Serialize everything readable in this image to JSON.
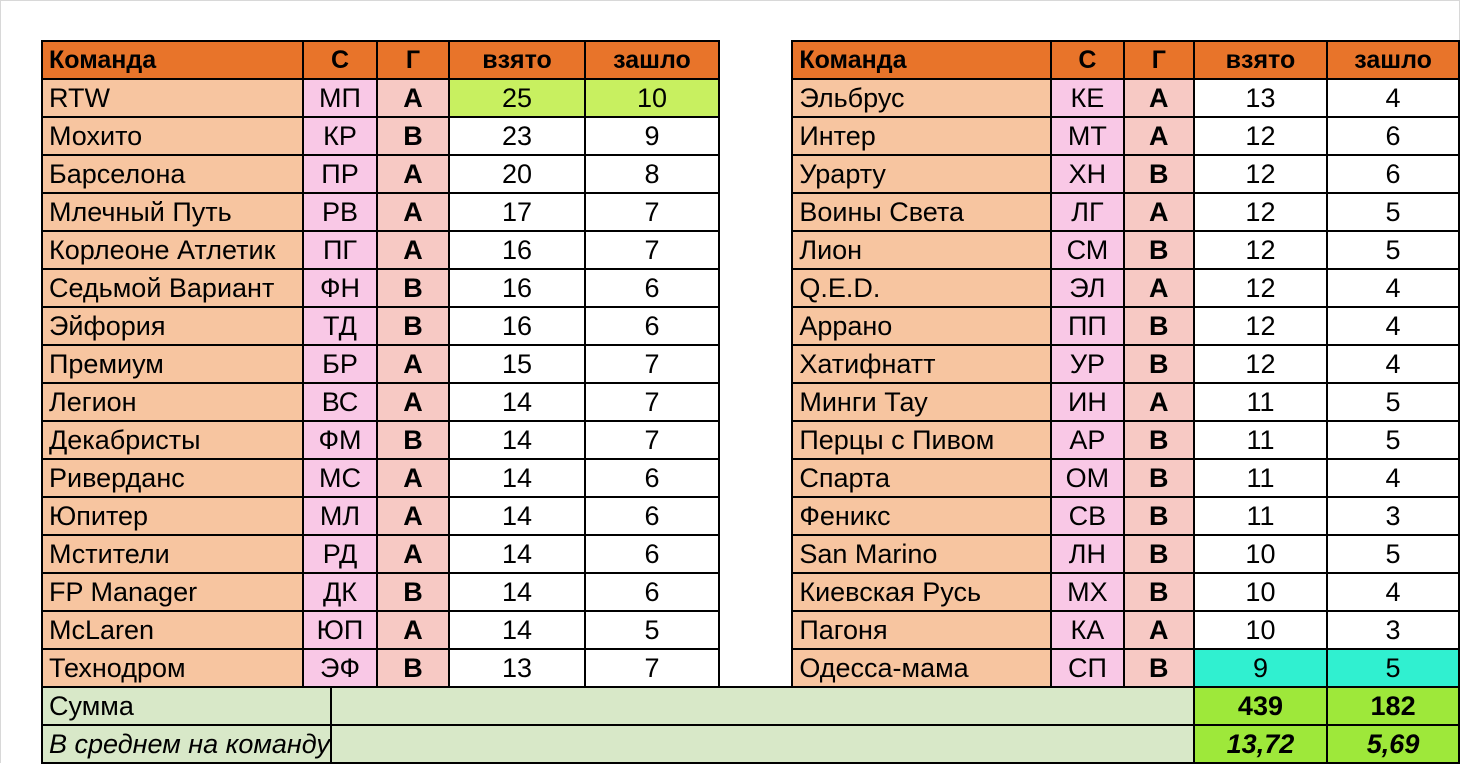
{
  "headers": {
    "team": "Команда",
    "c": "С",
    "g": "Г",
    "taken": "взято",
    "conceded": "зашло"
  },
  "left_rows": [
    {
      "team": "RTW",
      "c": "МП",
      "g": "A",
      "taken": "25",
      "conceded": "10"
    },
    {
      "team": "Мохито",
      "c": "КР",
      "g": "B",
      "taken": "23",
      "conceded": "9"
    },
    {
      "team": "Барселона",
      "c": "ПР",
      "g": "A",
      "taken": "20",
      "conceded": "8"
    },
    {
      "team": "Млечный Путь",
      "c": "РВ",
      "g": "A",
      "taken": "17",
      "conceded": "7"
    },
    {
      "team": "Корлеоне Атлетик",
      "c": "ПГ",
      "g": "A",
      "taken": "16",
      "conceded": "7"
    },
    {
      "team": "Седьмой Вариант",
      "c": "ФН",
      "g": "B",
      "taken": "16",
      "conceded": "6"
    },
    {
      "team": "Эйфория",
      "c": "ТД",
      "g": "B",
      "taken": "16",
      "conceded": "6"
    },
    {
      "team": "Премиум",
      "c": "БР",
      "g": "A",
      "taken": "15",
      "conceded": "7"
    },
    {
      "team": "Легион",
      "c": "ВС",
      "g": "A",
      "taken": "14",
      "conceded": "7"
    },
    {
      "team": "Декабристы",
      "c": "ФМ",
      "g": "B",
      "taken": "14",
      "conceded": "7"
    },
    {
      "team": "Риверданс",
      "c": "МС",
      "g": "A",
      "taken": "14",
      "conceded": "6"
    },
    {
      "team": "Юпитер",
      "c": "МЛ",
      "g": "A",
      "taken": "14",
      "conceded": "6"
    },
    {
      "team": "Мстители",
      "c": "РД",
      "g": "A",
      "taken": "14",
      "conceded": "6"
    },
    {
      "team": "FP Manager",
      "c": "ДК",
      "g": "B",
      "taken": "14",
      "conceded": "6"
    },
    {
      "team": "McLaren",
      "c": "ЮП",
      "g": "A",
      "taken": "14",
      "conceded": "5"
    },
    {
      "team": "Технодром",
      "c": "ЭФ",
      "g": "B",
      "taken": "13",
      "conceded": "7"
    }
  ],
  "right_rows": [
    {
      "team": "Эльбрус",
      "c": "КЕ",
      "g": "A",
      "taken": "13",
      "conceded": "4"
    },
    {
      "team": "Интер",
      "c": "МТ",
      "g": "A",
      "taken": "12",
      "conceded": "6"
    },
    {
      "team": "Урарту",
      "c": "ХН",
      "g": "B",
      "taken": "12",
      "conceded": "6"
    },
    {
      "team": "Воины Света",
      "c": "ЛГ",
      "g": "A",
      "taken": "12",
      "conceded": "5"
    },
    {
      "team": "Лион",
      "c": "СМ",
      "g": "B",
      "taken": "12",
      "conceded": "5"
    },
    {
      "team": "Q.E.D.",
      "c": "ЭЛ",
      "g": "A",
      "taken": "12",
      "conceded": "4"
    },
    {
      "team": "Аррано",
      "c": "ПП",
      "g": "B",
      "taken": "12",
      "conceded": "4"
    },
    {
      "team": "Хатифнатт",
      "c": "УР",
      "g": "B",
      "taken": "12",
      "conceded": "4"
    },
    {
      "team": "Минги Тау",
      "c": "ИН",
      "g": "A",
      "taken": "11",
      "conceded": "5"
    },
    {
      "team": "Перцы с Пивом",
      "c": "АР",
      "g": "B",
      "taken": "11",
      "conceded": "5"
    },
    {
      "team": "Спарта",
      "c": "ОМ",
      "g": "B",
      "taken": "11",
      "conceded": "4"
    },
    {
      "team": "Феникс",
      "c": "СВ",
      "g": "B",
      "taken": "11",
      "conceded": "3"
    },
    {
      "team": "San Marino",
      "c": "ЛН",
      "g": "B",
      "taken": "10",
      "conceded": "5"
    },
    {
      "team": "Киевская Русь",
      "c": "МХ",
      "g": "B",
      "taken": "10",
      "conceded": "4"
    },
    {
      "team": "Пагоня",
      "c": "КА",
      "g": "A",
      "taken": "10",
      "conceded": "3"
    },
    {
      "team": "Одесса-мама",
      "c": "СП",
      "g": "B",
      "taken": "9",
      "conceded": "5"
    }
  ],
  "summary": {
    "sum_label": "Сумма",
    "sum_taken": "439",
    "sum_conceded": "182",
    "avg_label": "В среднем на команду",
    "avg_taken": "13,72",
    "avg_conceded": "5,69"
  },
  "colors": {
    "header": "#e8742a",
    "team_cell": "#f7c5a0",
    "code_cell": "#f9c8e6",
    "group_cell": "#f7c9c4",
    "highlight_top": "#c8f060",
    "highlight_bottom": "#30f0d0",
    "summary_band": "#d8e8c8",
    "summary_values": "#9ee83a"
  }
}
